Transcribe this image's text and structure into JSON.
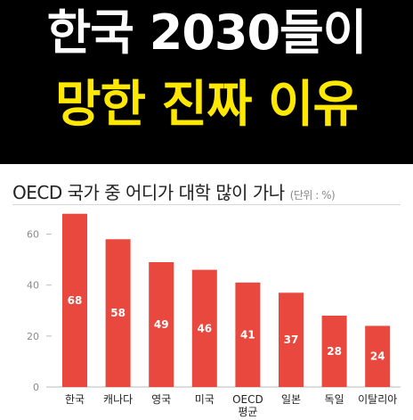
{
  "headline": {
    "line1": "한국 2030들이",
    "line2": "망한 진짜 이유"
  },
  "colors": {
    "banner_bg": "#000000",
    "line1": "#ffffff",
    "line2": "#ffe800",
    "bar": "#e8483e",
    "axis": "#bbbbbb"
  },
  "chart_data": {
    "type": "bar",
    "title": "OECD 국가 중 어디가 대학 많이 가나",
    "unit": "(단위 : %)",
    "categories": [
      "한국",
      "캐나다",
      "영국",
      "미국",
      "OECD\n평균",
      "일본",
      "독일",
      "이탈리아"
    ],
    "values": [
      68,
      58,
      49,
      46,
      41,
      37,
      28,
      24
    ],
    "ylim": [
      0,
      70
    ],
    "yticks": [
      0,
      20,
      40,
      60
    ],
    "grid": false,
    "legend": "none"
  }
}
